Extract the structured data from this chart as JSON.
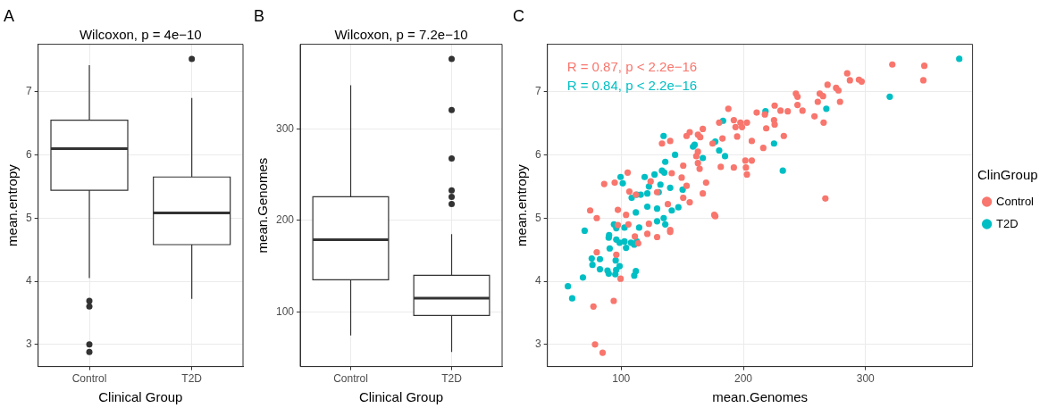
{
  "chart_data": [
    {
      "type": "box",
      "title": "A",
      "xlabel": "Clinical Group",
      "ylabel": "mean.entropy",
      "categories": [
        "Control",
        "T2D"
      ],
      "boxes": [
        {
          "low": 4.05,
          "q1": 5.44,
          "median": 6.1,
          "q3": 6.55,
          "high": 7.42,
          "outliers": [
            3.69,
            3.6,
            3.0,
            2.88
          ]
        },
        {
          "low": 3.72,
          "q1": 4.58,
          "median": 5.08,
          "q3": 5.65,
          "high": 6.9,
          "outliers": [
            7.52
          ]
        }
      ],
      "ylim": [
        2.65,
        7.75
      ],
      "yticks": [
        3,
        4,
        5,
        6,
        7
      ],
      "grid": true,
      "annotations": [
        "Wilcoxon, p = 4e−10"
      ]
    },
    {
      "type": "box",
      "title": "B",
      "xlabel": "Clinical Group",
      "ylabel": "mean.Genomes",
      "categories": [
        "Control",
        "T2D"
      ],
      "boxes": [
        {
          "low": 74,
          "q1": 135,
          "median": 179,
          "q3": 226,
          "high": 348
        },
        {
          "low": 56,
          "q1": 96,
          "median": 115,
          "q3": 140,
          "high": 185,
          "outliers": [
            377,
            321,
            268,
            233,
            226,
            218
          ]
        }
      ],
      "ylim": [
        40,
        393
      ],
      "yticks": [
        100,
        200,
        300
      ],
      "grid": true,
      "annotations": [
        "Wilcoxon, p = 7.2e−10"
      ]
    },
    {
      "type": "scatter",
      "title": "C",
      "xlabel": "mean.Genomes",
      "ylabel": "mean.entropy",
      "legend_title": "ClinGroup",
      "series": [
        {
          "name": "Control",
          "color": "#f8766d",
          "x": [
            187.7,
            268.9,
            275.9,
            277.8,
            279.1,
            243.0,
            244.3,
            262.5,
            265.2,
            260.9,
            244.3,
            248.4,
            236.3,
            230.4,
            225.6,
            210.9,
            217.6,
            225.1,
            225.6,
            218.7,
            233.1,
            216.3,
            265.7,
            258.2,
            192.2,
            197.6,
            202.9,
            193.6,
            198.9,
            180.2,
            166.8,
            156.1,
            162.8,
            153.5,
            164.7,
            194.9,
            206.9,
            182.9,
            174.8,
            133.4,
            140.1,
            162.8,
            161.5,
            201.6,
            206.9,
            202.1,
            202.9,
            192.2,
            181.5,
            162.8,
            164.2,
            150.8,
            141.4,
            105.3,
            94.7,
            86.1,
            106.7,
            112.0,
            124.1,
            129.4,
            149.5,
            153.5,
            169.5,
            166.8,
            150.8,
            156.1,
            74.6,
            97.3,
            104.0,
            176.2,
            267.1,
            321.9,
            348.1,
            347.3,
            285.0,
            287.2,
            294.6,
            296.8,
            80.0,
            105.9,
            97.3,
            122.7,
            121.4,
            129.4,
            140.1,
            140.1,
            111.2,
            113.9,
            80.0,
            96.0,
            99.5,
            77.3,
            93.9,
            78.6,
            84.8,
            177.0,
            138.2
          ],
          "values": [
            6.73,
            7.11,
            7.06,
            7.02,
            6.84,
            6.97,
            6.92,
            6.97,
            6.93,
            6.84,
            6.79,
            6.7,
            6.69,
            6.7,
            6.78,
            6.67,
            6.64,
            6.55,
            6.48,
            6.42,
            6.3,
            6.11,
            6.51,
            6.61,
            6.55,
            6.51,
            6.51,
            6.44,
            6.44,
            6.51,
            6.41,
            6.36,
            6.32,
            6.3,
            6.28,
            6.29,
            6.22,
            6.26,
            6.18,
            6.18,
            6.22,
            6.05,
            5.98,
            5.91,
            5.91,
            5.8,
            5.69,
            5.8,
            5.81,
            5.87,
            5.78,
            5.83,
            5.71,
            5.72,
            5.56,
            5.54,
            5.42,
            5.37,
            5.58,
            5.41,
            5.64,
            5.51,
            5.56,
            5.39,
            5.32,
            5.25,
            5.12,
            5.13,
            5.05,
            5.05,
            5.31,
            7.43,
            7.41,
            7.18,
            7.29,
            7.18,
            7.19,
            7.16,
            5.0,
            4.9,
            4.89,
            4.91,
            4.75,
            4.7,
            4.81,
            4.78,
            4.71,
            4.6,
            4.46,
            4.42,
            4.04,
            3.6,
            3.69,
            3.0,
            2.87,
            5.03,
            5.22
          ]
        },
        {
          "name": "T2D",
          "color": "#00bfc4",
          "x": [
            218.1,
            183.4,
            134.7,
            177.0,
            160.1,
            158.8,
            180.2,
            185.0,
            166.8,
            144.1,
            136.1,
            133.4,
            135.3,
            127.3,
            119.2,
            99.5,
            101.3,
            122.7,
            132.1,
            140.1,
            150.3,
            130.7,
            121.4,
            116.0,
            112.8,
            108.6,
            267.9,
            225.1,
            232.3,
            112.0,
            129.4,
            141.4,
            146.8,
            121.4,
            376.7,
            319.8,
            70.1,
            94.1,
            96.0,
            102.7,
            114.7,
            90.1,
            89.8,
            96.0,
            98.7,
            102.7,
            104.0,
            108.0,
            110.7,
            112.8,
            90.6,
            75.9,
            82.6,
            76.5,
            95.5,
            98.7,
            82.6,
            88.8,
            89.8,
            95.9,
            95.2,
            112.0,
            110.7,
            68.7,
            56.4,
            59.9,
            129.4,
            134.8,
            136.1
          ],
          "values": [
            6.69,
            6.54,
            6.3,
            6.21,
            6.16,
            6.13,
            6.07,
            5.98,
            5.95,
            6.0,
            5.89,
            5.75,
            5.72,
            5.69,
            5.65,
            5.65,
            5.55,
            5.5,
            5.53,
            5.48,
            5.45,
            5.41,
            5.39,
            5.37,
            5.37,
            5.32,
            6.73,
            6.18,
            5.75,
            5.09,
            5.15,
            5.12,
            5.17,
            5.18,
            7.52,
            6.92,
            4.8,
            4.9,
            4.84,
            4.85,
            4.85,
            4.73,
            4.69,
            4.66,
            4.61,
            4.63,
            4.53,
            4.61,
            4.58,
            4.63,
            4.52,
            4.36,
            4.35,
            4.26,
            4.33,
            4.24,
            4.19,
            4.17,
            4.12,
            4.18,
            4.11,
            4.16,
            4.09,
            4.06,
            3.92,
            3.73,
            4.95,
            5.0,
            4.9
          ]
        }
      ],
      "xlim": [
        39.6,
        387.6
      ],
      "xticks": [
        100,
        200,
        300
      ],
      "ylim": [
        2.65,
        7.75
      ],
      "yticks": [
        3,
        4,
        5,
        6,
        7
      ],
      "grid": true,
      "legend": "right",
      "marker": "circle",
      "annotations": [
        "R = 0.87, p < 2.2e−16",
        "R = 0.84, p < 2.2e−16"
      ]
    }
  ]
}
